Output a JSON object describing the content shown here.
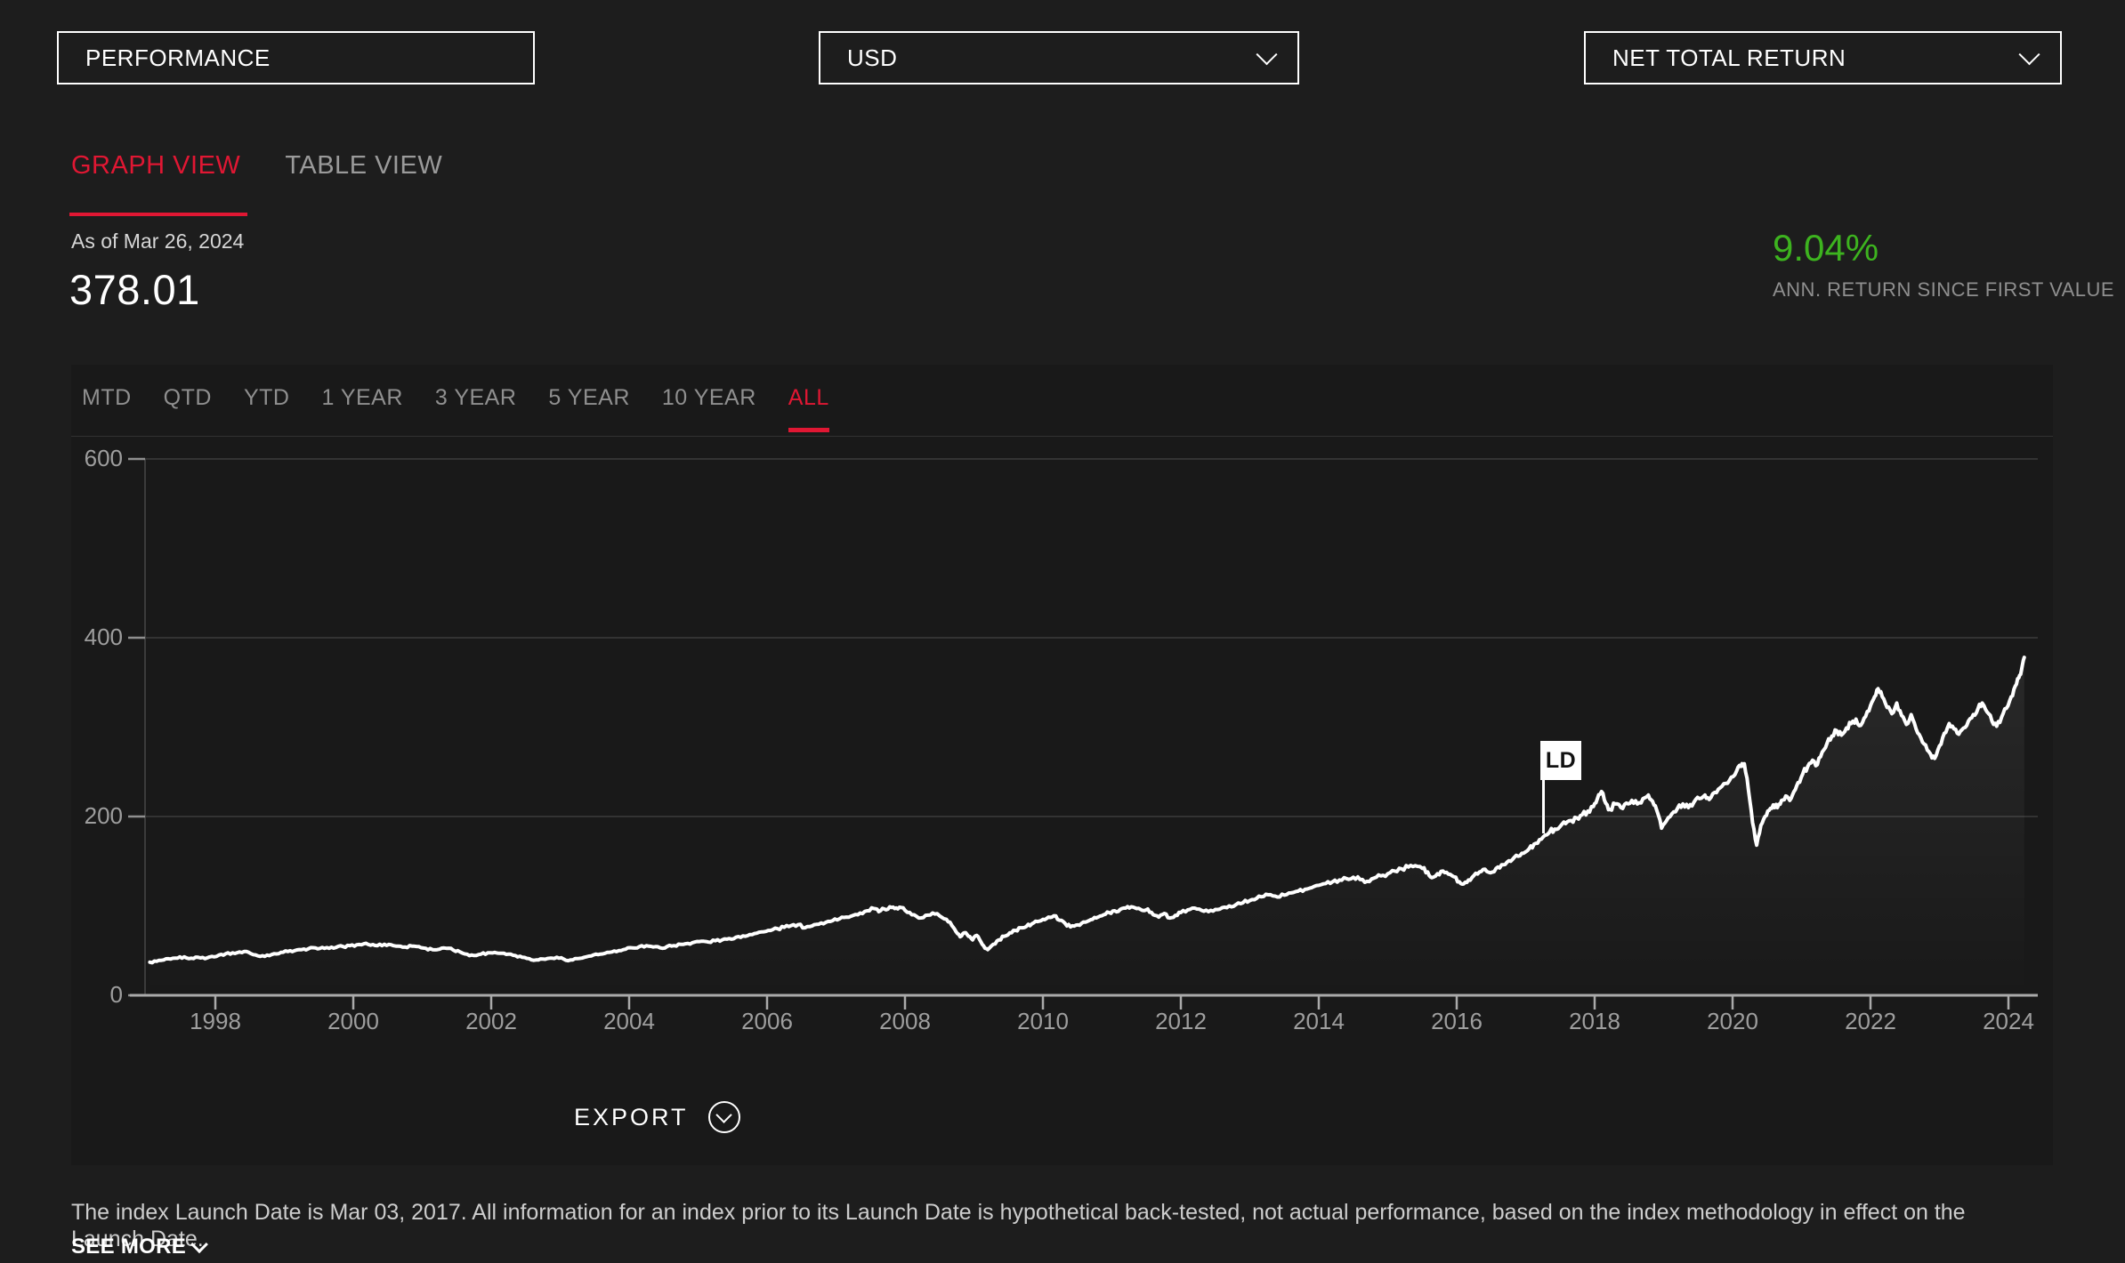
{
  "header": {
    "section_box": {
      "label": "PERFORMANCE"
    },
    "currency_select": {
      "value": "USD"
    },
    "return_type_select": {
      "value": "NET TOTAL RETURN"
    }
  },
  "view_tabs": [
    {
      "label": "GRAPH VIEW",
      "active": true
    },
    {
      "label": "TABLE VIEW",
      "active": false
    }
  ],
  "current_level": {
    "as_of_label": "As of Mar 26, 2024",
    "value": "378.01"
  },
  "annualized_return": {
    "value": "9.04%",
    "label": "ANN. RETURN SINCE FIRST VALUE"
  },
  "period_tabs": [
    {
      "label": "MTD",
      "active": false
    },
    {
      "label": "QTD",
      "active": false
    },
    {
      "label": "YTD",
      "active": false
    },
    {
      "label": "1 YEAR",
      "active": false
    },
    {
      "label": "3 YEAR",
      "active": false
    },
    {
      "label": "5 YEAR",
      "active": false
    },
    {
      "label": "10 YEAR",
      "active": false
    },
    {
      "label": "ALL",
      "active": true
    }
  ],
  "export_button": {
    "label": "EXPORT"
  },
  "disclaimer": {
    "text": "The index Launch Date is Mar 03, 2017. All information for an index prior to its Launch Date is hypothetical back-tested, not actual performance, based on the index methodology in effect on the Launch Date.",
    "see_more_label": "SEE MORE"
  },
  "colors": {
    "accent_red": "#e01733",
    "positive_green": "#3db31f",
    "line_white": "#ffffff",
    "panel_bg": "#191919",
    "page_bg": "#1d1d1d"
  },
  "chart_data": {
    "type": "line",
    "ylim": [
      0,
      600
    ],
    "yticks": [
      600,
      400,
      200,
      0
    ],
    "xticks": [
      1998,
      2000,
      2002,
      2004,
      2006,
      2008,
      2010,
      2012,
      2014,
      2016,
      2018,
      2020,
      2022,
      2024
    ],
    "x_range": [
      1997.05,
      2024.23
    ],
    "grid": "horizontal-only",
    "marker": {
      "label": "LD",
      "year": 2017.25
    },
    "last_value": 378.01,
    "points": [
      [
        1997.05,
        37
      ],
      [
        1997.15,
        38
      ],
      [
        1997.25,
        39.5
      ],
      [
        1997.35,
        40.5
      ],
      [
        1997.45,
        41.5
      ],
      [
        1997.55,
        43
      ],
      [
        1997.65,
        41.5
      ],
      [
        1997.75,
        42.5
      ],
      [
        1997.85,
        41
      ],
      [
        1997.95,
        43.5
      ],
      [
        1998.05,
        45
      ],
      [
        1998.15,
        46.5
      ],
      [
        1998.25,
        47.5
      ],
      [
        1998.35,
        48.5
      ],
      [
        1998.45,
        49
      ],
      [
        1998.55,
        45.5
      ],
      [
        1998.65,
        43.5
      ],
      [
        1998.75,
        45
      ],
      [
        1998.85,
        46.5
      ],
      [
        1998.95,
        48
      ],
      [
        1999.05,
        49
      ],
      [
        1999.15,
        50
      ],
      [
        1999.25,
        51
      ],
      [
        1999.35,
        52
      ],
      [
        1999.45,
        53
      ],
      [
        1999.55,
        53.5
      ],
      [
        1999.65,
        52.5
      ],
      [
        1999.75,
        53.5
      ],
      [
        1999.85,
        54.5
      ],
      [
        1999.95,
        55.5
      ],
      [
        2000.05,
        56.5
      ],
      [
        2000.15,
        57.5
      ],
      [
        2000.25,
        56
      ],
      [
        2000.35,
        55.5
      ],
      [
        2000.45,
        57
      ],
      [
        2000.55,
        56.5
      ],
      [
        2000.65,
        55
      ],
      [
        2000.75,
        54
      ],
      [
        2000.85,
        55
      ],
      [
        2000.95,
        54.5
      ],
      [
        2001.05,
        52.5
      ],
      [
        2001.15,
        51
      ],
      [
        2001.25,
        51.5
      ],
      [
        2001.35,
        52.5
      ],
      [
        2001.45,
        50.5
      ],
      [
        2001.55,
        48.5
      ],
      [
        2001.65,
        46
      ],
      [
        2001.75,
        44.5
      ],
      [
        2001.85,
        46
      ],
      [
        2001.95,
        47.5
      ],
      [
        2002.05,
        48
      ],
      [
        2002.15,
        47
      ],
      [
        2002.25,
        46
      ],
      [
        2002.35,
        44.5
      ],
      [
        2002.45,
        42.5
      ],
      [
        2002.55,
        41
      ],
      [
        2002.65,
        39.5
      ],
      [
        2002.75,
        40.5
      ],
      [
        2002.85,
        41.5
      ],
      [
        2002.95,
        42.5
      ],
      [
        2003.05,
        40.5
      ],
      [
        2003.15,
        39.5
      ],
      [
        2003.25,
        41
      ],
      [
        2003.35,
        42.5
      ],
      [
        2003.45,
        44
      ],
      [
        2003.55,
        45.5
      ],
      [
        2003.65,
        47
      ],
      [
        2003.75,
        48.5
      ],
      [
        2003.85,
        50
      ],
      [
        2003.95,
        51.5
      ],
      [
        2004.05,
        53
      ],
      [
        2004.15,
        54.5
      ],
      [
        2004.25,
        55.5
      ],
      [
        2004.35,
        54
      ],
      [
        2004.45,
        53
      ],
      [
        2004.55,
        54.5
      ],
      [
        2004.65,
        55.5
      ],
      [
        2004.75,
        57
      ],
      [
        2004.85,
        58
      ],
      [
        2004.95,
        59.5
      ],
      [
        2005.05,
        60.5
      ],
      [
        2005.15,
        59.5
      ],
      [
        2005.25,
        61
      ],
      [
        2005.35,
        62
      ],
      [
        2005.45,
        63.5
      ],
      [
        2005.55,
        65
      ],
      [
        2005.65,
        66.5
      ],
      [
        2005.75,
        68
      ],
      [
        2005.85,
        69.5
      ],
      [
        2005.95,
        71
      ],
      [
        2006.05,
        72.5
      ],
      [
        2006.15,
        74.5
      ],
      [
        2006.25,
        76
      ],
      [
        2006.35,
        78
      ],
      [
        2006.45,
        79
      ],
      [
        2006.55,
        75.5
      ],
      [
        2006.65,
        77.5
      ],
      [
        2006.75,
        79.5
      ],
      [
        2006.85,
        81.5
      ],
      [
        2006.95,
        83.5
      ],
      [
        2007.05,
        85.5
      ],
      [
        2007.15,
        87.5
      ],
      [
        2007.25,
        89.5
      ],
      [
        2007.35,
        92
      ],
      [
        2007.45,
        94.5
      ],
      [
        2007.55,
        97
      ],
      [
        2007.62,
        93.5
      ],
      [
        2007.7,
        96.5
      ],
      [
        2007.78,
        99
      ],
      [
        2007.85,
        97
      ],
      [
        2007.92,
        98.5
      ],
      [
        2008.0,
        95
      ],
      [
        2008.1,
        90
      ],
      [
        2008.2,
        86.5
      ],
      [
        2008.3,
        89.5
      ],
      [
        2008.4,
        92
      ],
      [
        2008.5,
        89
      ],
      [
        2008.6,
        85
      ],
      [
        2008.68,
        78
      ],
      [
        2008.74,
        71
      ],
      [
        2008.8,
        65.5
      ],
      [
        2008.86,
        70
      ],
      [
        2008.92,
        66
      ],
      [
        2008.98,
        62
      ],
      [
        2009.04,
        67
      ],
      [
        2009.1,
        60
      ],
      [
        2009.16,
        52.5
      ],
      [
        2009.2,
        51
      ],
      [
        2009.28,
        57
      ],
      [
        2009.36,
        62
      ],
      [
        2009.44,
        66
      ],
      [
        2009.52,
        70
      ],
      [
        2009.6,
        72.5
      ],
      [
        2009.68,
        75.5
      ],
      [
        2009.76,
        77
      ],
      [
        2009.84,
        80
      ],
      [
        2009.92,
        82.5
      ],
      [
        2010.0,
        85
      ],
      [
        2010.08,
        87.5
      ],
      [
        2010.16,
        89
      ],
      [
        2010.24,
        84
      ],
      [
        2010.32,
        80.5
      ],
      [
        2010.4,
        76.5
      ],
      [
        2010.48,
        78.5
      ],
      [
        2010.56,
        80.5
      ],
      [
        2010.64,
        82.5
      ],
      [
        2010.72,
        85
      ],
      [
        2010.8,
        87.5
      ],
      [
        2010.88,
        90
      ],
      [
        2010.96,
        92.5
      ],
      [
        2011.04,
        94.5
      ],
      [
        2011.12,
        96
      ],
      [
        2011.2,
        97.5
      ],
      [
        2011.28,
        99
      ],
      [
        2011.36,
        97
      ],
      [
        2011.44,
        95
      ],
      [
        2011.52,
        96.5
      ],
      [
        2011.6,
        90
      ],
      [
        2011.68,
        87.5
      ],
      [
        2011.76,
        91.5
      ],
      [
        2011.84,
        86.5
      ],
      [
        2011.92,
        89.5
      ],
      [
        2012.0,
        92.5
      ],
      [
        2012.1,
        95.5
      ],
      [
        2012.2,
        97.5
      ],
      [
        2012.3,
        95
      ],
      [
        2012.4,
        93.5
      ],
      [
        2012.5,
        96
      ],
      [
        2012.6,
        98
      ],
      [
        2012.7,
        100
      ],
      [
        2012.8,
        101.5
      ],
      [
        2012.9,
        103.5
      ],
      [
        2013.0,
        106
      ],
      [
        2013.1,
        108.5
      ],
      [
        2013.2,
        110.5
      ],
      [
        2013.3,
        112.5
      ],
      [
        2013.4,
        110
      ],
      [
        2013.5,
        112
      ],
      [
        2013.6,
        114.5
      ],
      [
        2013.7,
        116.5
      ],
      [
        2013.8,
        118.5
      ],
      [
        2013.9,
        120.5
      ],
      [
        2014.0,
        123
      ],
      [
        2014.1,
        125
      ],
      [
        2014.2,
        127
      ],
      [
        2014.3,
        129
      ],
      [
        2014.4,
        130.5
      ],
      [
        2014.5,
        132
      ],
      [
        2014.6,
        129.5
      ],
      [
        2014.7,
        127.5
      ],
      [
        2014.8,
        131
      ],
      [
        2014.9,
        133.5
      ],
      [
        2015.0,
        136
      ],
      [
        2015.1,
        139
      ],
      [
        2015.2,
        141.5
      ],
      [
        2015.3,
        143.5
      ],
      [
        2015.4,
        145
      ],
      [
        2015.5,
        142
      ],
      [
        2015.58,
        138
      ],
      [
        2015.64,
        131.5
      ],
      [
        2015.72,
        136
      ],
      [
        2015.8,
        139
      ],
      [
        2015.88,
        135.5
      ],
      [
        2015.96,
        132.5
      ],
      [
        2016.04,
        127
      ],
      [
        2016.1,
        124.5
      ],
      [
        2016.17,
        129
      ],
      [
        2016.25,
        134
      ],
      [
        2016.33,
        138
      ],
      [
        2016.41,
        141
      ],
      [
        2016.49,
        137
      ],
      [
        2016.57,
        142
      ],
      [
        2016.65,
        146
      ],
      [
        2016.73,
        149
      ],
      [
        2016.81,
        152
      ],
      [
        2016.89,
        155.5
      ],
      [
        2016.97,
        159
      ],
      [
        2017.05,
        164
      ],
      [
        2017.12,
        169
      ],
      [
        2017.2,
        174
      ],
      [
        2017.28,
        179
      ],
      [
        2017.35,
        183
      ],
      [
        2017.42,
        186
      ],
      [
        2017.5,
        189
      ],
      [
        2017.58,
        192
      ],
      [
        2017.66,
        195.5
      ],
      [
        2017.74,
        198.5
      ],
      [
        2017.82,
        202
      ],
      [
        2017.9,
        206
      ],
      [
        2017.98,
        211
      ],
      [
        2018.04,
        220
      ],
      [
        2018.1,
        228
      ],
      [
        2018.16,
        215
      ],
      [
        2018.22,
        208
      ],
      [
        2018.3,
        214
      ],
      [
        2018.38,
        210
      ],
      [
        2018.46,
        215
      ],
      [
        2018.54,
        218
      ],
      [
        2018.62,
        214
      ],
      [
        2018.7,
        220
      ],
      [
        2018.78,
        224
      ],
      [
        2018.84,
        217
      ],
      [
        2018.9,
        207
      ],
      [
        2018.97,
        187
      ],
      [
        2019.04,
        195
      ],
      [
        2019.12,
        203
      ],
      [
        2019.2,
        209
      ],
      [
        2019.28,
        214
      ],
      [
        2019.36,
        210
      ],
      [
        2019.44,
        216
      ],
      [
        2019.52,
        220
      ],
      [
        2019.6,
        224
      ],
      [
        2019.66,
        219
      ],
      [
        2019.74,
        227
      ],
      [
        2019.82,
        232
      ],
      [
        2019.9,
        237
      ],
      [
        2019.98,
        244
      ],
      [
        2020.06,
        251
      ],
      [
        2020.12,
        256
      ],
      [
        2020.17,
        259
      ],
      [
        2020.23,
        230
      ],
      [
        2020.29,
        193
      ],
      [
        2020.35,
        168
      ],
      [
        2020.41,
        190
      ],
      [
        2020.47,
        200
      ],
      [
        2020.53,
        207
      ],
      [
        2020.59,
        213
      ],
      [
        2020.65,
        210
      ],
      [
        2020.71,
        218
      ],
      [
        2020.77,
        223
      ],
      [
        2020.83,
        218
      ],
      [
        2020.89,
        228
      ],
      [
        2020.95,
        238
      ],
      [
        2021.02,
        248
      ],
      [
        2021.09,
        256
      ],
      [
        2021.16,
        263
      ],
      [
        2021.23,
        258
      ],
      [
        2021.3,
        272
      ],
      [
        2021.37,
        282
      ],
      [
        2021.44,
        290
      ],
      [
        2021.51,
        296
      ],
      [
        2021.58,
        291
      ],
      [
        2021.65,
        299
      ],
      [
        2021.72,
        304
      ],
      [
        2021.79,
        309
      ],
      [
        2021.86,
        302
      ],
      [
        2021.93,
        312
      ],
      [
        2022.0,
        324
      ],
      [
        2022.06,
        334
      ],
      [
        2022.11,
        343
      ],
      [
        2022.17,
        334
      ],
      [
        2022.24,
        322
      ],
      [
        2022.31,
        315
      ],
      [
        2022.38,
        327
      ],
      [
        2022.45,
        313
      ],
      [
        2022.52,
        303
      ],
      [
        2022.59,
        314
      ],
      [
        2022.66,
        298
      ],
      [
        2022.73,
        288
      ],
      [
        2022.8,
        280
      ],
      [
        2022.87,
        270
      ],
      [
        2022.93,
        265
      ],
      [
        2023.0,
        279
      ],
      [
        2023.07,
        293
      ],
      [
        2023.14,
        304
      ],
      [
        2023.21,
        298
      ],
      [
        2023.28,
        292
      ],
      [
        2023.35,
        299
      ],
      [
        2023.42,
        307
      ],
      [
        2023.49,
        314
      ],
      [
        2023.56,
        321
      ],
      [
        2023.62,
        327
      ],
      [
        2023.69,
        317
      ],
      [
        2023.76,
        307
      ],
      [
        2023.83,
        301
      ],
      [
        2023.9,
        311
      ],
      [
        2023.97,
        321
      ],
      [
        2024.04,
        334
      ],
      [
        2024.1,
        346
      ],
      [
        2024.15,
        355
      ],
      [
        2024.19,
        364
      ],
      [
        2024.23,
        378
      ]
    ]
  }
}
